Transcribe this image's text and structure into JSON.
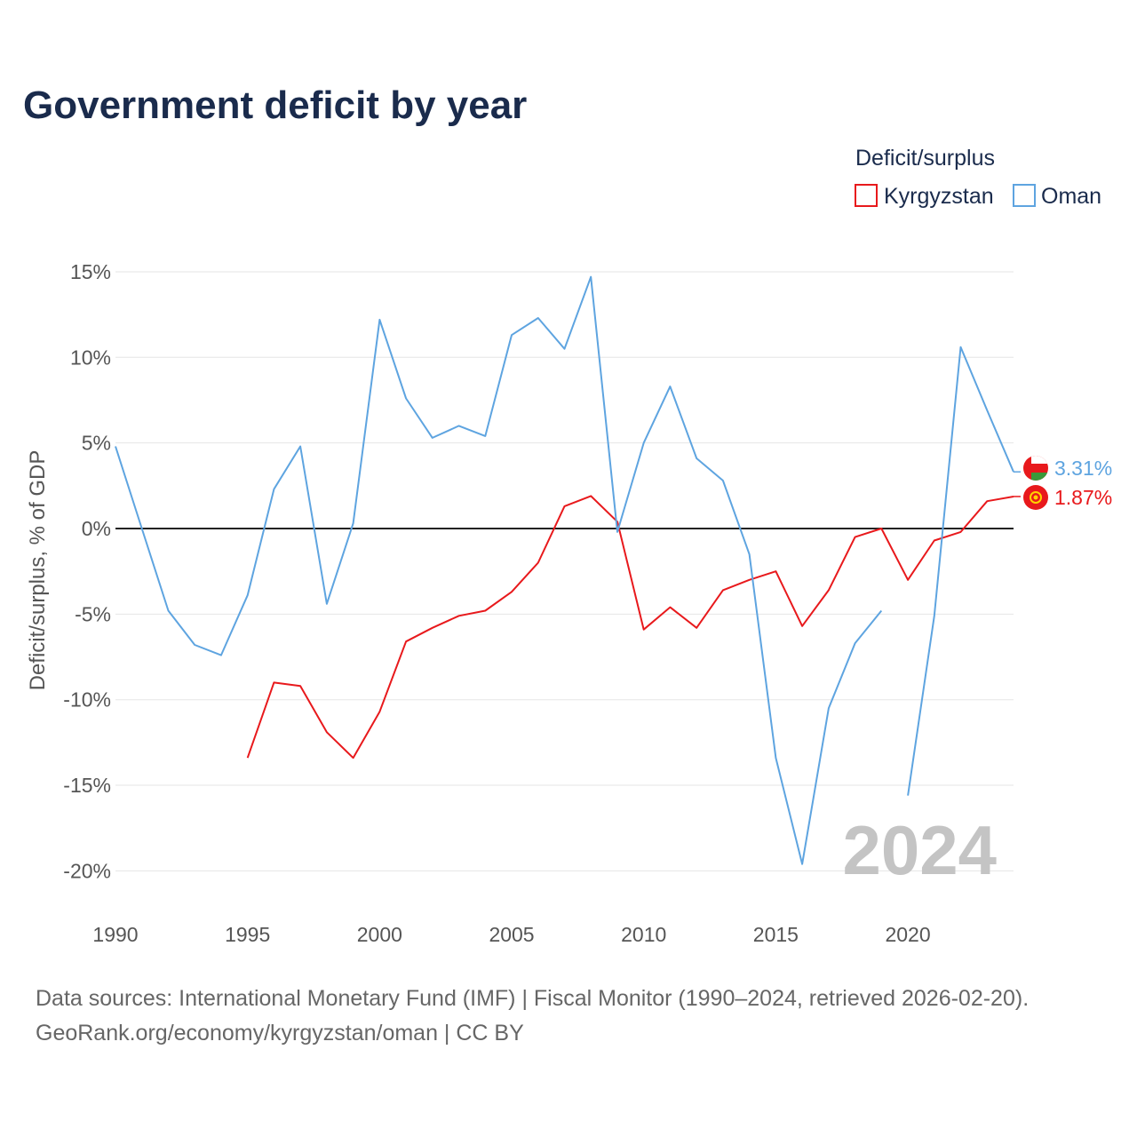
{
  "title": "Government deficit by year",
  "legend": {
    "title": "Deficit/surplus",
    "items": [
      {
        "label": "Kyrgyzstan",
        "color": "#e8191c"
      },
      {
        "label": "Oman",
        "color": "#5ea4e0"
      }
    ]
  },
  "watermark": "2024",
  "source_line1": "Data sources: International Monetary Fund (IMF) | Fiscal Monitor (1990–2024, retrieved 2026-02-20).",
  "source_line2": "GeoRank.org/economy/kyrgyzstan/oman | CC BY",
  "chart_data": {
    "type": "line",
    "title": "Government deficit by year",
    "xlabel": "",
    "ylabel": "Deficit/surplus, % of GDP",
    "xlim": [
      1990,
      2024
    ],
    "ylim": [
      -22,
      17
    ],
    "y_ticks": [
      15,
      10,
      5,
      0,
      -5,
      -10,
      -15,
      -20
    ],
    "y_tick_labels": [
      "15%",
      "10%",
      "5%",
      "0%",
      "-5%",
      "-10%",
      "-15%",
      "-20%"
    ],
    "x_ticks": [
      1990,
      1995,
      2000,
      2005,
      2010,
      2015,
      2020
    ],
    "x_tick_labels": [
      "1990",
      "1995",
      "2000",
      "2005",
      "2010",
      "2015",
      "2020"
    ],
    "grid": true,
    "legend_position": "top-right",
    "series": [
      {
        "name": "Kyrgyzstan",
        "color": "#e8191c",
        "end_label": "1.87%",
        "flag": "kyrgyzstan-flag",
        "x": [
          1995,
          1996,
          1997,
          1998,
          1999,
          2000,
          2001,
          2002,
          2003,
          2004,
          2005,
          2006,
          2007,
          2008,
          2009,
          2010,
          2011,
          2012,
          2013,
          2014,
          2015,
          2016,
          2017,
          2018,
          2019,
          2020,
          2021,
          2022,
          2023,
          2024
        ],
        "values": [
          -13.4,
          -9.0,
          -9.2,
          -11.9,
          -13.4,
          -10.7,
          -6.6,
          -5.8,
          -5.1,
          -4.8,
          -3.7,
          -2.0,
          1.3,
          1.9,
          0.4,
          -5.9,
          -4.6,
          -5.8,
          -3.6,
          -3.0,
          -2.5,
          -5.7,
          -3.6,
          -0.5,
          0.0,
          -3.0,
          -0.7,
          -0.2,
          1.6,
          1.87
        ]
      },
      {
        "name": "Oman",
        "color": "#5ea4e0",
        "end_label": "3.31%",
        "flag": "oman-flag",
        "x": [
          1990,
          1991,
          1992,
          1993,
          1994,
          1995,
          1996,
          1997,
          1998,
          1999,
          2000,
          2001,
          2002,
          2003,
          2004,
          2005,
          2006,
          2007,
          2008,
          2009,
          2010,
          2011,
          2012,
          2013,
          2014,
          2015,
          2016,
          2017,
          2018,
          2019
        ],
        "values": [
          4.8,
          0.0,
          -4.8,
          -6.8,
          -7.4,
          -3.9,
          2.3,
          4.8,
          -4.4,
          0.3,
          12.2,
          7.6,
          5.3,
          6.0,
          5.4,
          11.3,
          12.3,
          10.5,
          14.7,
          -0.2,
          5.0,
          8.3,
          4.1,
          2.8,
          -1.5,
          -13.4,
          -19.6,
          -10.5,
          -6.7,
          -4.8
        ]
      },
      {
        "name": "Oman (2020–2024)",
        "color": "#5ea4e0",
        "continuation_of": "Oman",
        "x": [
          2020,
          2021,
          2022,
          2023,
          2024
        ],
        "values": [
          -15.6,
          -5.1,
          10.6,
          6.9,
          3.31
        ]
      }
    ]
  }
}
